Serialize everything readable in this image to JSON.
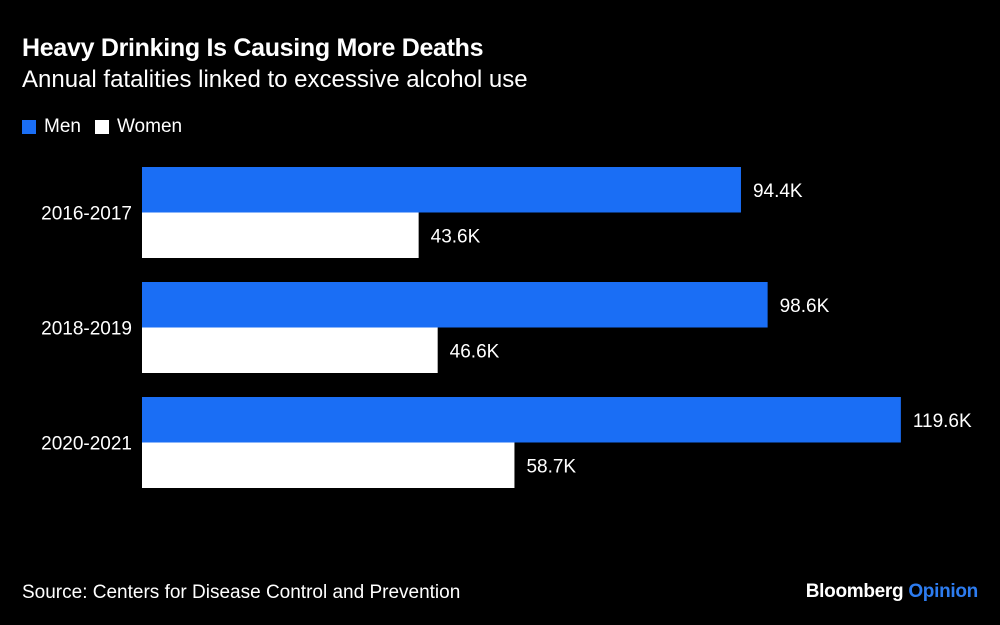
{
  "chart_data": {
    "type": "bar",
    "orientation": "horizontal",
    "title": "Heavy Drinking Is Causing More Deaths",
    "subtitle": "Annual fatalities linked to excessive alcohol use",
    "categories": [
      "2016-2017",
      "2018-2019",
      "2020-2021"
    ],
    "series": [
      {
        "name": "Men",
        "color": "#1a6ef5",
        "values": [
          94.4,
          98.6,
          119.6
        ],
        "labels": [
          "94.4K",
          "98.6K",
          "119.6K"
        ]
      },
      {
        "name": "Women",
        "color": "#ffffff",
        "values": [
          43.6,
          46.6,
          58.7
        ],
        "labels": [
          "43.6K",
          "46.6K",
          "58.7K"
        ]
      }
    ],
    "unit": "K",
    "xlim": [
      0,
      120
    ],
    "grid": false,
    "legend_position": "top-left"
  },
  "source": "Source: Centers for Disease Control and Prevention",
  "logo": {
    "brand": "Bloomberg",
    "product": "Opinion"
  }
}
